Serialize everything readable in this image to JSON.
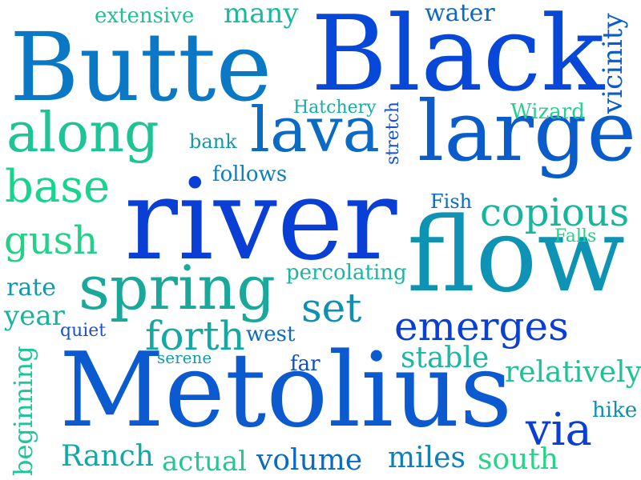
{
  "words": [
    {
      "text": "river",
      "color": "#0a3fd6"
    },
    {
      "text": "Metolius",
      "color": "#0c5ad0"
    },
    {
      "text": "Black",
      "color": "#0848d8"
    },
    {
      "text": "Butte",
      "color": "#0a78c4"
    },
    {
      "text": "flow",
      "color": "#0f93b4"
    },
    {
      "text": "large",
      "color": "#0a5ccb"
    },
    {
      "text": "spring",
      "color": "#1aa89a"
    },
    {
      "text": "lava",
      "color": "#0a6ac4"
    },
    {
      "text": "along",
      "color": "#1ec396"
    },
    {
      "text": "base",
      "color": "#1ad48e"
    },
    {
      "text": "emerges",
      "color": "#0a3fd6"
    },
    {
      "text": "copious",
      "color": "#18b59c"
    },
    {
      "text": "set",
      "color": "#0f8fb4"
    },
    {
      "text": "forth",
      "color": "#14a8a2"
    },
    {
      "text": "gush",
      "color": "#24d088"
    },
    {
      "text": "via",
      "color": "#0a3fd6"
    },
    {
      "text": "relatively",
      "color": "#1fc294"
    },
    {
      "text": "stable",
      "color": "#1ab8a0"
    },
    {
      "text": "volume",
      "color": "#0a6ac4"
    },
    {
      "text": "Ranch",
      "color": "#12a8a8"
    },
    {
      "text": "actual",
      "color": "#24c88e"
    },
    {
      "text": "miles",
      "color": "#0c7fbe"
    },
    {
      "text": "south",
      "color": "#26d488"
    },
    {
      "text": "beginning",
      "color": "#1ec49a"
    },
    {
      "text": "many",
      "color": "#1ab89c"
    },
    {
      "text": "water",
      "color": "#0a6ac4"
    },
    {
      "text": "vicinity",
      "color": "#0a5ccb"
    },
    {
      "text": "extensive",
      "color": "#20c096"
    },
    {
      "text": "Hatchery",
      "color": "#18aca4"
    },
    {
      "text": "Wizard",
      "color": "#26d08c"
    },
    {
      "text": "stretch",
      "color": "#1a50d0"
    },
    {
      "text": "bank",
      "color": "#139aaa"
    },
    {
      "text": "follows",
      "color": "#0c7fbe"
    },
    {
      "text": "Fish",
      "color": "#0a6ac4"
    },
    {
      "text": "Falls",
      "color": "#26d08c"
    },
    {
      "text": "percolating",
      "color": "#1fb4a0"
    },
    {
      "text": "rate",
      "color": "#139aaa"
    },
    {
      "text": "year",
      "color": "#18b59c"
    },
    {
      "text": "quiet",
      "color": "#1a50d0"
    },
    {
      "text": "west",
      "color": "#0a6ac4"
    },
    {
      "text": "serene",
      "color": "#139aaa"
    },
    {
      "text": "far",
      "color": "#0c4fc8"
    },
    {
      "text": "hike",
      "color": "#0f8fb4"
    }
  ]
}
